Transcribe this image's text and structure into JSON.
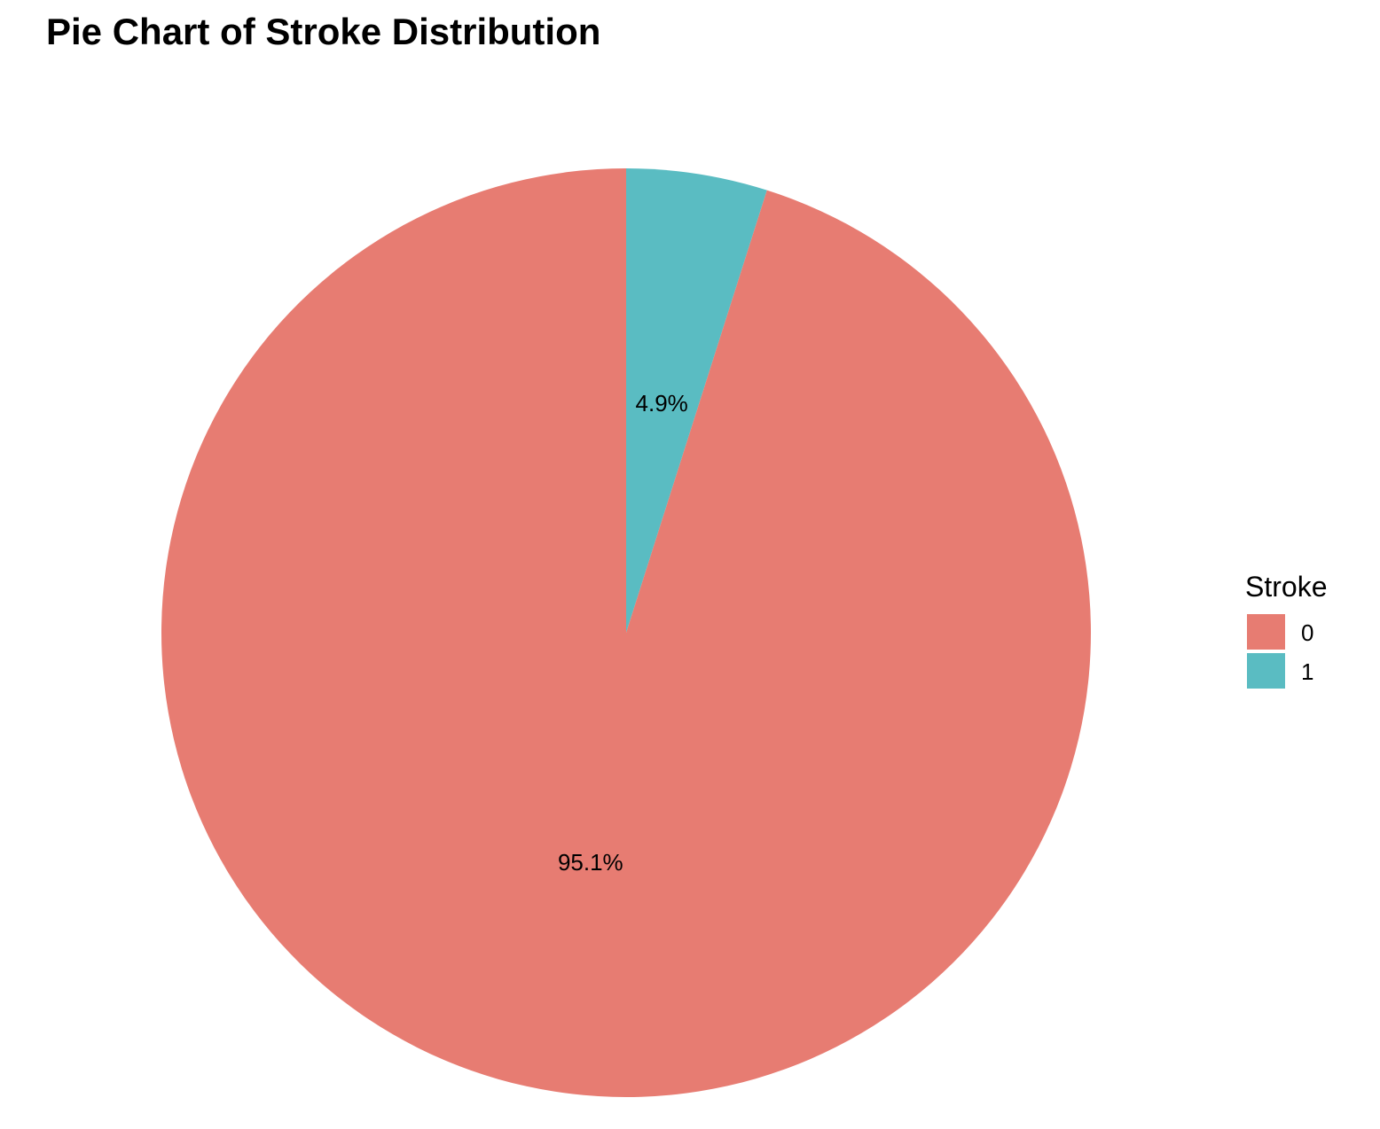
{
  "chart_data": {
    "type": "pie",
    "title": "Pie Chart of Stroke Distribution",
    "legend": {
      "title": "Stroke",
      "placement": "right"
    },
    "categories": [
      "0",
      "1"
    ],
    "values": [
      95.1,
      4.9
    ],
    "labels": [
      "95.1%",
      "4.9%"
    ],
    "colors": [
      "#E77C72",
      "#5ABCC2"
    ],
    "start_angle": "12 o'clock",
    "direction": "counterclockwise for category 0, slice 1 clockwise from top"
  }
}
